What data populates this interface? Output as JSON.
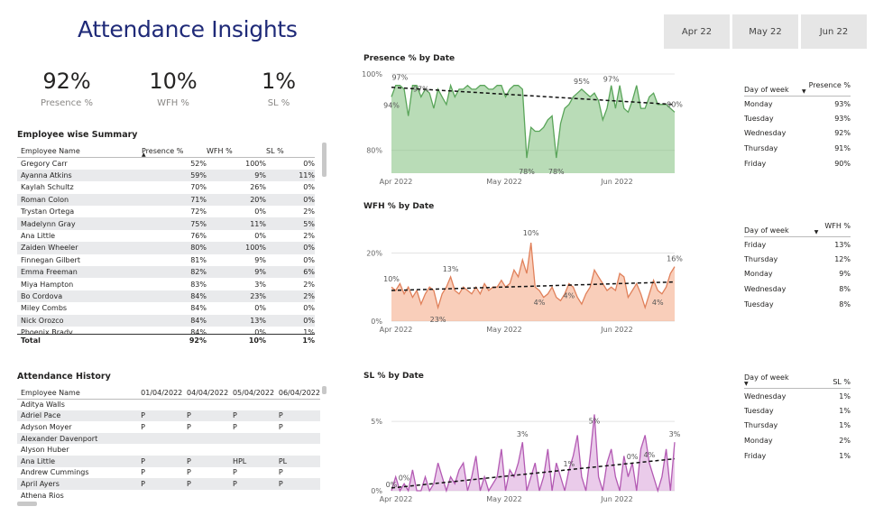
{
  "title": "Attendance Insights",
  "months": [
    "Apr 22",
    "May 22",
    "Jun 22"
  ],
  "kpis": [
    {
      "value": "92%",
      "label": "Presence %"
    },
    {
      "value": "10%",
      "label": "WFH %"
    },
    {
      "value": "1%",
      "label": "SL %"
    }
  ],
  "employee_summary": {
    "title": "Employee wise Summary",
    "headers": [
      "Employee Name",
      "Presence %",
      "WFH %",
      "SL %"
    ],
    "rows": [
      [
        "Gregory Carr",
        "52%",
        "100%",
        "0%"
      ],
      [
        "Ayanna Atkins",
        "59%",
        "9%",
        "11%"
      ],
      [
        "Kaylah Schultz",
        "70%",
        "26%",
        "0%"
      ],
      [
        "Roman Colon",
        "71%",
        "20%",
        "0%"
      ],
      [
        "Trystan Ortega",
        "72%",
        "0%",
        "2%"
      ],
      [
        "Madelynn Gray",
        "75%",
        "11%",
        "5%"
      ],
      [
        "Ana Little",
        "76%",
        "0%",
        "2%"
      ],
      [
        "Zaiden Wheeler",
        "80%",
        "100%",
        "0%"
      ],
      [
        "Finnegan Gilbert",
        "81%",
        "9%",
        "0%"
      ],
      [
        "Emma Freeman",
        "82%",
        "9%",
        "6%"
      ],
      [
        "Miya Hampton",
        "83%",
        "3%",
        "2%"
      ],
      [
        "Bo Cordova",
        "84%",
        "23%",
        "2%"
      ],
      [
        "Miley Combs",
        "84%",
        "0%",
        "0%"
      ],
      [
        "Nick Orozco",
        "84%",
        "13%",
        "0%"
      ],
      [
        "Phoenix Brady",
        "84%",
        "0%",
        "1%"
      ]
    ],
    "total": [
      "Total",
      "92%",
      "10%",
      "1%"
    ]
  },
  "attendance_history": {
    "title": "Attendance History",
    "headers": [
      "Employee Name",
      "01/04/2022",
      "04/04/2022",
      "05/04/2022",
      "06/04/2022"
    ],
    "rows": [
      [
        "Aditya Walls",
        "",
        "",
        "",
        ""
      ],
      [
        "Adriel Pace",
        "P",
        "P",
        "P",
        "P"
      ],
      [
        "Adyson Moyer",
        "P",
        "P",
        "P",
        "P"
      ],
      [
        "Alexander Davenport",
        "",
        "",
        "",
        ""
      ],
      [
        "Alyson Huber",
        "",
        "",
        "",
        ""
      ],
      [
        "Ana Little",
        "P",
        "P",
        "HPL",
        "PL"
      ],
      [
        "Andrew Cummings",
        "P",
        "P",
        "P",
        "P"
      ],
      [
        "April Ayers",
        "P",
        "P",
        "P",
        "P"
      ],
      [
        "Athena Rios",
        "",
        "",
        "",
        ""
      ]
    ]
  },
  "chart_data": [
    {
      "type": "area",
      "title": "Presence % by Date",
      "xlabel": "",
      "ylabel": "",
      "x_ticks": [
        "Apr 2022",
        "May 2022",
        "Jun 2022"
      ],
      "y_ticks": [
        "80%",
        "100%"
      ],
      "ylim": [
        74,
        100
      ],
      "color": "#7fbf7b",
      "values": [
        94,
        97,
        97,
        96,
        89,
        97,
        97,
        94,
        96,
        95,
        91,
        96,
        94,
        92,
        97,
        94,
        96,
        96,
        97,
        96,
        96,
        97,
        97,
        96,
        96,
        97,
        97,
        94,
        96,
        97,
        97,
        96,
        78,
        86,
        85,
        85,
        86,
        88,
        89,
        78,
        87,
        91,
        92,
        94,
        95,
        96,
        95,
        94,
        95,
        93,
        88,
        91,
        97,
        91,
        97,
        91,
        90,
        93,
        97,
        91,
        91,
        94,
        95,
        92,
        92,
        92,
        91,
        90
      ],
      "trend": [
        96.5,
        92.0
      ],
      "annotations": [
        "94%",
        "97%",
        "97%",
        "78%",
        "78%",
        "95%",
        "97%",
        "90%"
      ]
    },
    {
      "type": "area",
      "title": "WFH % by Date",
      "x_ticks": [
        "Apr 2022",
        "May 2022",
        "Jun 2022"
      ],
      "y_ticks": [
        "0%",
        "20%"
      ],
      "ylim": [
        0,
        27
      ],
      "color": "#f4a582",
      "values": [
        10,
        9,
        11,
        8,
        10,
        7,
        9,
        5,
        8,
        10,
        9,
        4,
        8,
        10,
        13,
        9,
        8,
        10,
        9,
        8,
        10,
        8,
        11,
        9,
        10,
        10,
        12,
        10,
        11,
        15,
        13,
        18,
        14,
        23,
        10,
        9,
        7,
        8,
        10,
        7,
        6,
        8,
        11,
        10,
        7,
        5,
        8,
        10,
        15,
        13,
        11,
        9,
        10,
        9,
        14,
        13,
        7,
        9,
        11,
        8,
        4,
        8,
        12,
        9,
        8,
        10,
        14,
        16
      ],
      "trend": [
        9.0,
        11.5
      ],
      "annotations": [
        "10%",
        "13%",
        "4%",
        "10%",
        "23%",
        "4%",
        "4%",
        "16%"
      ]
    },
    {
      "type": "area",
      "title": "SL % by Date",
      "x_ticks": [
        "Apr 2022",
        "May 2022",
        "Jun 2022"
      ],
      "y_ticks": [
        "0%",
        "5%"
      ],
      "ylim": [
        0,
        6.5
      ],
      "color": "#d9a0d8",
      "values": [
        0,
        1,
        0,
        0.5,
        0,
        1.5,
        0,
        0,
        1,
        0,
        0.5,
        2,
        1,
        0,
        1,
        0.5,
        1.5,
        2,
        0,
        1,
        2.5,
        0,
        1,
        0,
        0.5,
        1,
        3,
        0,
        1.5,
        1,
        2,
        3.5,
        0,
        1,
        2,
        0,
        1,
        3,
        0,
        2,
        1,
        0,
        1.5,
        2.5,
        4,
        1,
        0,
        2.5,
        5.5,
        1,
        0,
        2,
        3,
        1,
        0,
        2.5,
        1,
        2,
        0,
        3,
        4,
        2,
        1,
        0,
        1,
        3,
        0,
        3.5
      ],
      "trend": [
        0.2,
        2.3
      ],
      "annotations": [
        "0%",
        "0%",
        "3%",
        "5%",
        "1%",
        "0%",
        "4%",
        "3%"
      ]
    }
  ],
  "presence_by_day": {
    "headers": [
      "Day of week",
      "Presence %"
    ],
    "rows": [
      [
        "Monday",
        "93%"
      ],
      [
        "Tuesday",
        "93%"
      ],
      [
        "Wednesday",
        "92%"
      ],
      [
        "Thursday",
        "91%"
      ],
      [
        "Friday",
        "90%"
      ]
    ]
  },
  "wfh_by_day": {
    "headers": [
      "Day of week",
      "WFH %"
    ],
    "rows": [
      [
        "Friday",
        "13%"
      ],
      [
        "Thursday",
        "12%"
      ],
      [
        "Monday",
        "9%"
      ],
      [
        "Wednesday",
        "8%"
      ],
      [
        "Tuesday",
        "8%"
      ]
    ]
  },
  "sl_by_day": {
    "headers": [
      "Day of week",
      "SL %"
    ],
    "rows": [
      [
        "Wednesday",
        "1%"
      ],
      [
        "Tuesday",
        "1%"
      ],
      [
        "Thursday",
        "1%"
      ],
      [
        "Monday",
        "2%"
      ],
      [
        "Friday",
        "1%"
      ]
    ]
  }
}
